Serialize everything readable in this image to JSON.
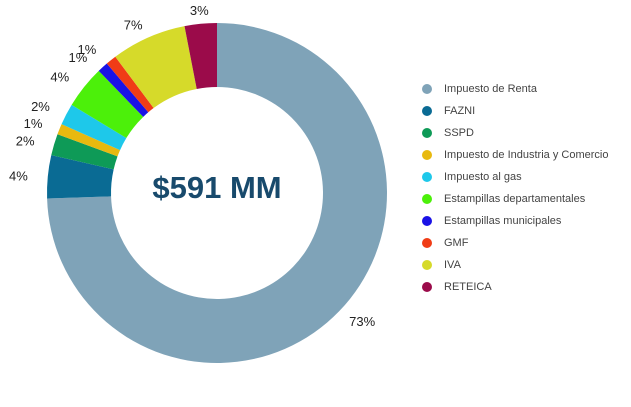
{
  "chart_data": {
    "type": "pie",
    "variant": "donut",
    "center_label": "$591 MM",
    "categories": [
      "Impuesto de Renta",
      "FAZNI",
      "SSPD",
      "Impuesto de Industria y Comercio",
      "Impuesto al gas",
      "Estampillas departamentales",
      "Estampillas municipales",
      "GMF",
      "IVA",
      "RETEICA"
    ],
    "values": [
      73,
      4,
      2,
      1,
      2,
      4,
      1,
      1,
      7,
      3
    ],
    "labels": [
      "73%",
      "4%",
      "2%",
      "1%",
      "2%",
      "4%",
      "1%",
      "1%",
      "7%",
      "3%"
    ],
    "colors": [
      "#7fa3b8",
      "#0a6b94",
      "#0e9a57",
      "#e8b90f",
      "#1ec8ea",
      "#4cf00a",
      "#1a12e6",
      "#f03c16",
      "#d6da2a",
      "#9b0b4a"
    ],
    "legend_position": "right"
  }
}
